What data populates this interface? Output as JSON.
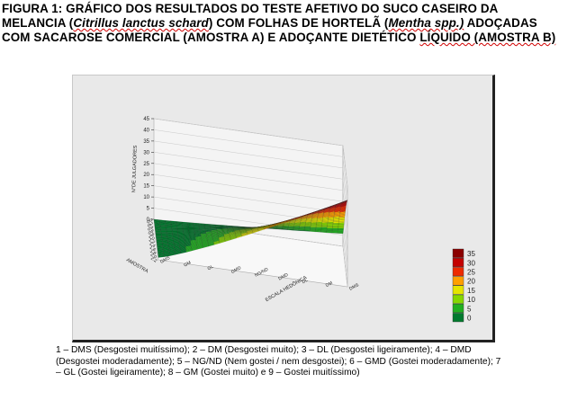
{
  "figure": {
    "heading_parts": [
      "FIGURA 1: GRÁFICO DOS RESULTADOS DO TESTE AFETIVO DO SUCO CASEIRO DA MELANCIA (",
      "Citrillus lanctus schard",
      ") COM FOLHAS DE HORTELÃ (",
      "Mentha spp.)",
      " ADOÇADAS COM SACAROSE COMERCIAL (AMOSTRA A) E ADOÇANTE DIETÉTICO ",
      "LÍQUIDO (AMOSTRA B)"
    ],
    "caption": "1 – DMS (Desgostei muitíssimo); 2 – DM (Desgostei muito); 3 – DL (Desgostei ligeiramente); 4 – DMD (Desgostei moderadamente); 5 – NG/ND (Nem gostei / nem desgostei); 6 – GMD (Gostei moderadamente); 7 – GL (Gostei ligeiramente); 8 – GM (Gostei muito) e 9 – Gostei muitíssimo)"
  },
  "chart_data": {
    "type": "surface3d",
    "z_label": "N°DE JULGADORES",
    "x_label": "AMOSTRA",
    "y_label": "ESCALA HEDÔNICA",
    "z_ticks": [
      0,
      5,
      10,
      15,
      20,
      25,
      30,
      35,
      40,
      45
    ],
    "zlim": [
      0,
      45
    ],
    "x_ticks": [
      "0",
      "0.2",
      "0.4",
      "0.6",
      "0.8",
      "1.0",
      "1.2",
      "1.4",
      "1.6",
      "1.8",
      "2.0",
      "2.2"
    ],
    "y_ticks": [
      "DMS",
      "DM",
      "DL",
      "DMD",
      "NG/ND",
      "GMD",
      "GL",
      "GM",
      "GMS"
    ],
    "legend": {
      "position": "right",
      "levels": [
        35,
        30,
        25,
        20,
        15,
        10,
        5,
        0
      ],
      "colors": [
        "#8b0000",
        "#c40000",
        "#ee2a00",
        "#ff9f00",
        "#e5e500",
        "#86d800",
        "#20b020",
        "#007a2e"
      ]
    },
    "surface_samples": {
      "note_x": "amostra",
      "x": [
        0.0,
        2.2
      ],
      "y_index": [
        1,
        9
      ],
      "corner_values": {
        "x0_y1": 0,
        "x0_y9": 0,
        "x2.2_y1": 0,
        "x2.2_y9": 40
      }
    }
  }
}
